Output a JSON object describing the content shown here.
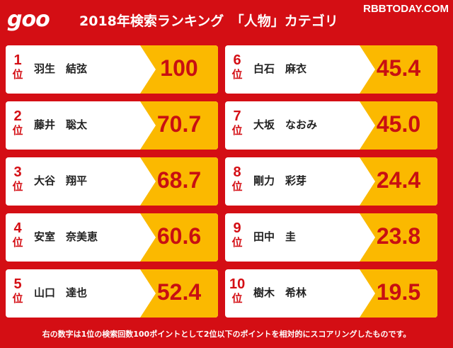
{
  "header": {
    "logo": "goo",
    "title": "2018年検索ランキング　「人物」カテゴリ",
    "watermark": "RBBTODAY.COM"
  },
  "rank_suffix": "位",
  "rankings": [
    {
      "rank": "1",
      "name": "羽生　結弦",
      "score": "100"
    },
    {
      "rank": "2",
      "name": "藤井　聡太",
      "score": "70.7"
    },
    {
      "rank": "3",
      "name": "大谷　翔平",
      "score": "68.7"
    },
    {
      "rank": "4",
      "name": "安室　奈美恵",
      "score": "60.6"
    },
    {
      "rank": "5",
      "name": "山口　達也",
      "score": "52.4"
    },
    {
      "rank": "6",
      "name": "白石　麻衣",
      "score": "45.4"
    },
    {
      "rank": "7",
      "name": "大坂　なおみ",
      "score": "45.0"
    },
    {
      "rank": "8",
      "name": "剛力　彩芽",
      "score": "24.4"
    },
    {
      "rank": "9",
      "name": "田中　圭",
      "score": "23.8"
    },
    {
      "rank": "10",
      "name": "樹木　希林",
      "score": "19.5"
    }
  ],
  "footnote": "右の数字は1位の検索回数100ポイントとして2位以下のポイントを相対的にスコアリングしたものです。",
  "colors": {
    "background": "#d40e14",
    "score_panel": "#fbb900",
    "accent_text": "#c80f12"
  }
}
